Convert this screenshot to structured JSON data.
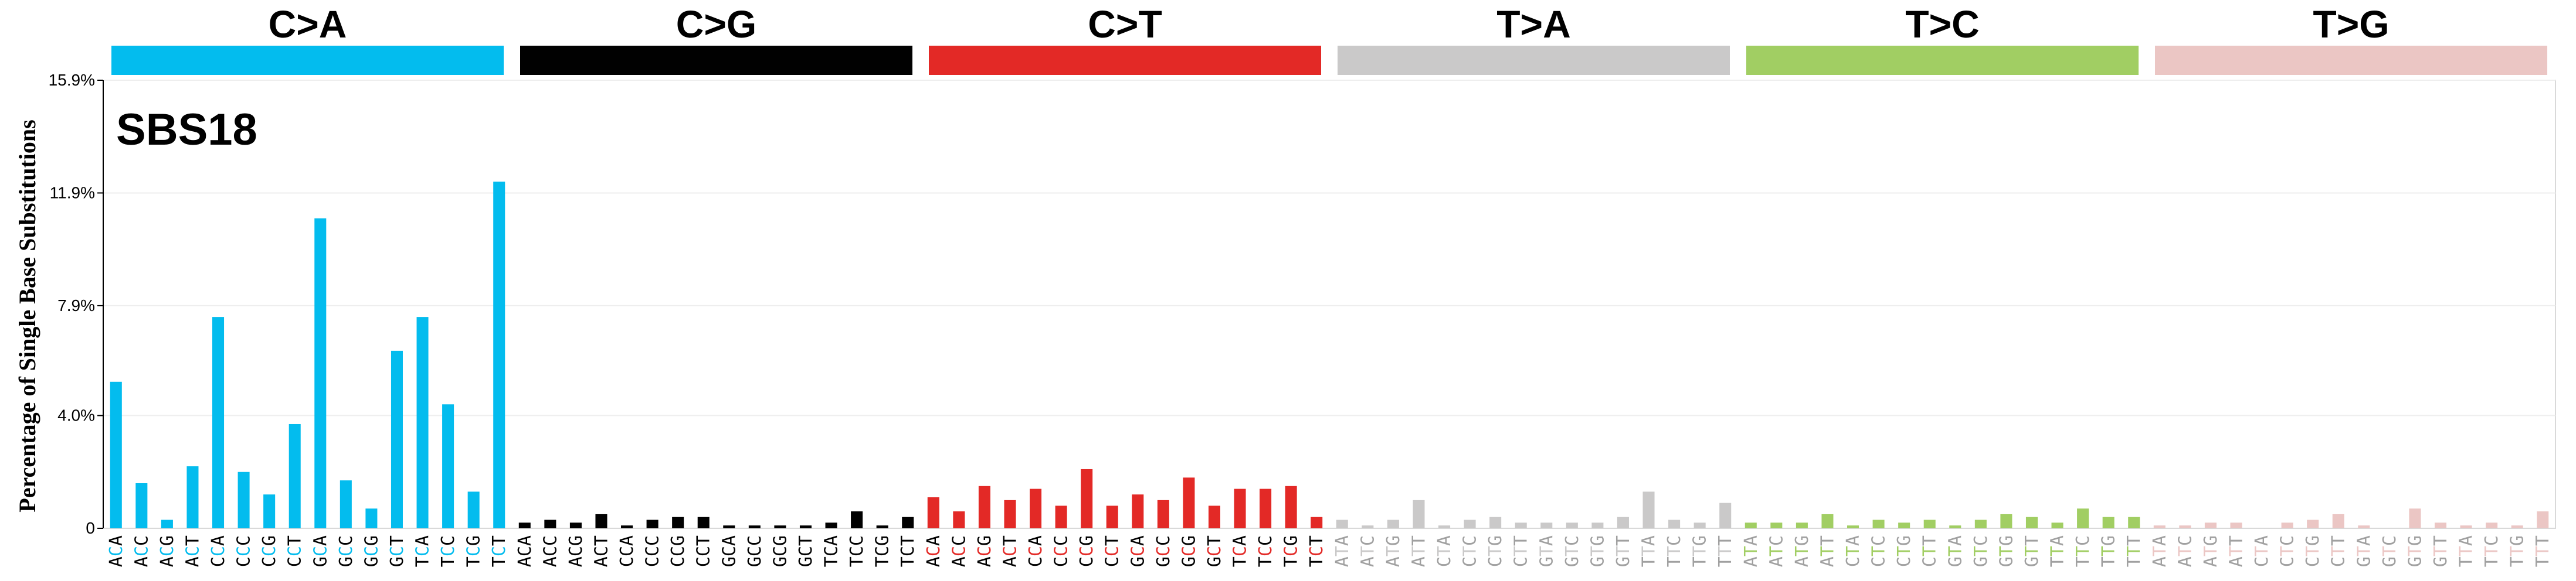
{
  "chart_data": {
    "type": "bar",
    "title": "SBS18",
    "ylabel": "Percentage of Single Base Substitutions",
    "xlabel": "",
    "ylim": [
      0,
      15.9
    ],
    "yticks": [
      "0",
      "4.0%",
      "7.9%",
      "11.9%",
      "15.9%"
    ],
    "ytick_values": [
      0,
      4.0,
      7.9,
      11.9,
      15.9
    ],
    "grid": true,
    "legend": "none",
    "mutation_types": [
      {
        "label": "C>A",
        "color": "#03BCEE"
      },
      {
        "label": "C>G",
        "color": "#010101"
      },
      {
        "label": "C>T",
        "color": "#E32926"
      },
      {
        "label": "T>A",
        "color": "#CAC9C9"
      },
      {
        "label": "T>C",
        "color": "#A1CE63"
      },
      {
        "label": "T>G",
        "color": "#EBC6C4"
      }
    ],
    "contexts": [
      [
        "ACA",
        "ACC",
        "ACG",
        "ACT",
        "CCA",
        "CCC",
        "CCG",
        "CCT",
        "GCA",
        "GCC",
        "GCG",
        "GCT",
        "TCA",
        "TCC",
        "TCG",
        "TCT"
      ],
      [
        "ACA",
        "ACC",
        "ACG",
        "ACT",
        "CCA",
        "CCC",
        "CCG",
        "CCT",
        "GCA",
        "GCC",
        "GCG",
        "GCT",
        "TCA",
        "TCC",
        "TCG",
        "TCT"
      ],
      [
        "ACA",
        "ACC",
        "ACG",
        "ACT",
        "CCA",
        "CCC",
        "CCG",
        "CCT",
        "GCA",
        "GCC",
        "GCG",
        "GCT",
        "TCA",
        "TCC",
        "TCG",
        "TCT"
      ],
      [
        "ATA",
        "ATC",
        "ATG",
        "ATT",
        "CTA",
        "CTC",
        "CTG",
        "CTT",
        "GTA",
        "GTC",
        "GTG",
        "GTT",
        "TTA",
        "TTC",
        "TTG",
        "TTT"
      ],
      [
        "ATA",
        "ATC",
        "ATG",
        "ATT",
        "CTA",
        "CTC",
        "CTG",
        "CTT",
        "GTA",
        "GTC",
        "GTG",
        "GTT",
        "TTA",
        "TTC",
        "TTG",
        "TTT"
      ],
      [
        "ATA",
        "ATC",
        "ATG",
        "ATT",
        "CTA",
        "CTC",
        "CTG",
        "CTT",
        "GTA",
        "GTC",
        "GTG",
        "GTT",
        "TTA",
        "TTC",
        "TTG",
        "TTT"
      ]
    ],
    "values": [
      [
        5.2,
        1.6,
        0.3,
        2.2,
        7.5,
        2.0,
        1.2,
        3.7,
        11.0,
        1.7,
        0.7,
        6.3,
        7.5,
        4.4,
        1.3,
        12.3
      ],
      [
        0.2,
        0.3,
        0.2,
        0.5,
        0.1,
        0.3,
        0.4,
        0.4,
        0.1,
        0.1,
        0.1,
        0.1,
        0.2,
        0.6,
        0.1,
        0.4
      ],
      [
        1.1,
        0.6,
        1.5,
        1.0,
        1.4,
        0.8,
        2.1,
        0.8,
        1.2,
        1.0,
        1.8,
        0.8,
        1.4,
        1.4,
        1.5,
        0.4
      ],
      [
        0.3,
        0.1,
        0.3,
        1.0,
        0.1,
        0.3,
        0.4,
        0.2,
        0.2,
        0.2,
        0.2,
        0.4,
        1.3,
        0.3,
        0.2,
        0.9
      ],
      [
        0.2,
        0.2,
        0.2,
        0.5,
        0.1,
        0.3,
        0.2,
        0.3,
        0.1,
        0.3,
        0.5,
        0.4,
        0.2,
        0.7,
        0.4,
        0.4
      ],
      [
        0.1,
        0.1,
        0.2,
        0.2,
        0.0,
        0.2,
        0.3,
        0.5,
        0.1,
        0.0,
        0.7,
        0.2,
        0.1,
        0.2,
        0.1,
        0.6
      ]
    ]
  }
}
